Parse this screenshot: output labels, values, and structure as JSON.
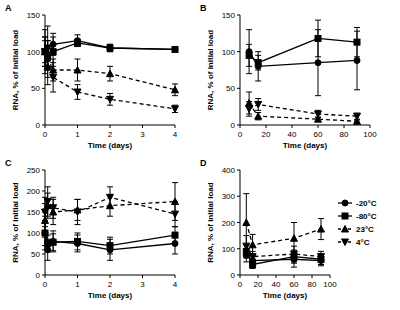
{
  "chart_data": [
    {
      "type": "line",
      "title": "A",
      "x_label": "Time (days)",
      "y_label": "RNA, % of initial load",
      "xlim": [
        0,
        4
      ],
      "xticks": [
        0,
        1,
        2,
        3,
        4
      ],
      "ylim": [
        0,
        150
      ],
      "yticks": [
        0,
        50,
        100,
        150
      ],
      "x": [
        0,
        0.083,
        0.25,
        1,
        2,
        4
      ],
      "series": [
        {
          "name": "-20°C",
          "color": "#000000",
          "marker": "circle",
          "line_style": "solid",
          "values": [
            100,
            90,
            110,
            115,
            105,
            103
          ],
          "errors": [
            20,
            25,
            15,
            8,
            5,
            3
          ]
        },
        {
          "name": "-80°C",
          "color": "#000000",
          "marker": "square",
          "line_style": "solid",
          "values": [
            100,
            95,
            100,
            112,
            105,
            103
          ],
          "errors": [
            15,
            20,
            20,
            5,
            5,
            3
          ]
        },
        {
          "name": "23°C",
          "color": "#000000",
          "marker": "triangle",
          "line_style": "dashed",
          "values": [
            100,
            80,
            75,
            75,
            70,
            48
          ],
          "errors": [
            30,
            25,
            15,
            15,
            10,
            8
          ]
        },
        {
          "name": "4°C",
          "color": "#000000",
          "marker": "triangle-down",
          "line_style": "dashed",
          "values": [
            100,
            105,
            65,
            45,
            35,
            22
          ],
          "errors": [
            20,
            30,
            20,
            10,
            8,
            5
          ]
        }
      ]
    },
    {
      "type": "line",
      "title": "B",
      "x_label": "Time (days)",
      "y_label": "RNA, % of initial load",
      "xlim": [
        0,
        100
      ],
      "xticks": [
        0,
        20,
        40,
        60,
        80,
        100
      ],
      "ylim": [
        0,
        150
      ],
      "yticks": [
        0,
        50,
        100,
        150
      ],
      "x": [
        7,
        14,
        60,
        90
      ],
      "series": [
        {
          "name": "-20°C",
          "color": "#000000",
          "marker": "circle",
          "line_style": "solid",
          "values": [
            100,
            80,
            85,
            88
          ],
          "errors": [
            30,
            20,
            45,
            40
          ]
        },
        {
          "name": "-80°C",
          "color": "#000000",
          "marker": "square",
          "line_style": "solid",
          "values": [
            95,
            85,
            118,
            113
          ],
          "errors": [
            15,
            10,
            25,
            20
          ]
        },
        {
          "name": "23°C",
          "color": "#000000",
          "marker": "triangle",
          "line_style": "dashed",
          "values": [
            30,
            12,
            8,
            5
          ],
          "errors": [
            15,
            5,
            3,
            2
          ]
        },
        {
          "name": "4°C",
          "color": "#000000",
          "marker": "triangle-down",
          "line_style": "dashed",
          "values": [
            22,
            28,
            15,
            12
          ],
          "errors": [
            10,
            8,
            5,
            4
          ]
        }
      ]
    },
    {
      "type": "line",
      "title": "C",
      "x_label": "Time (days)",
      "y_label": "RNA, % of initial load",
      "xlim": [
        0,
        4
      ],
      "xticks": [
        0,
        1,
        2,
        3,
        4
      ],
      "ylim": [
        0,
        250
      ],
      "yticks": [
        0,
        50,
        100,
        150,
        200,
        250
      ],
      "x": [
        0,
        0.083,
        0.25,
        1,
        2,
        4
      ],
      "series": [
        {
          "name": "-20°C",
          "color": "#000000",
          "marker": "circle",
          "line_style": "solid",
          "values": [
            100,
            60,
            80,
            75,
            60,
            75
          ],
          "errors": [
            40,
            25,
            25,
            20,
            25,
            25
          ]
        },
        {
          "name": "-80°C",
          "color": "#000000",
          "marker": "square",
          "line_style": "solid",
          "values": [
            100,
            75,
            78,
            80,
            70,
            95
          ],
          "errors": [
            30,
            20,
            20,
            20,
            20,
            20
          ]
        },
        {
          "name": "23°C",
          "color": "#000000",
          "marker": "triangle",
          "line_style": "dashed",
          "values": [
            130,
            165,
            150,
            155,
            165,
            175
          ],
          "errors": [
            40,
            30,
            30,
            25,
            25,
            45
          ]
        },
        {
          "name": "4°C",
          "color": "#000000",
          "marker": "triangle-down",
          "line_style": "dashed",
          "values": [
            150,
            175,
            160,
            150,
            185,
            145
          ],
          "errors": [
            35,
            35,
            25,
            30,
            25,
            30
          ]
        }
      ]
    },
    {
      "type": "line",
      "title": "D",
      "x_label": "Time (days)",
      "y_label": "RNA, % of initial load",
      "legend": "right",
      "xlim": [
        0,
        100
      ],
      "xticks": [
        0,
        20,
        40,
        60,
        80,
        100
      ],
      "ylim": [
        0,
        400
      ],
      "yticks": [
        0,
        100,
        200,
        300,
        400
      ],
      "x": [
        7,
        14,
        60,
        90
      ],
      "series": [
        {
          "name": "-20°C",
          "color": "#000000",
          "marker": "circle",
          "line_style": "solid",
          "values": [
            75,
            55,
            60,
            55
          ],
          "errors": [
            25,
            20,
            30,
            20
          ]
        },
        {
          "name": "-80°C",
          "color": "#000000",
          "marker": "square",
          "line_style": "solid",
          "values": [
            90,
            40,
            70,
            60
          ],
          "errors": [
            25,
            15,
            25,
            20
          ]
        },
        {
          "name": "23°C",
          "color": "#000000",
          "marker": "triangle",
          "line_style": "dashed",
          "values": [
            200,
            115,
            140,
            175
          ],
          "errors": [
            110,
            40,
            60,
            40
          ]
        },
        {
          "name": "4°C",
          "color": "#000000",
          "marker": "triangle-down",
          "line_style": "dashed",
          "values": [
            110,
            70,
            80,
            70
          ],
          "errors": [
            40,
            20,
            30,
            20
          ]
        }
      ]
    }
  ]
}
